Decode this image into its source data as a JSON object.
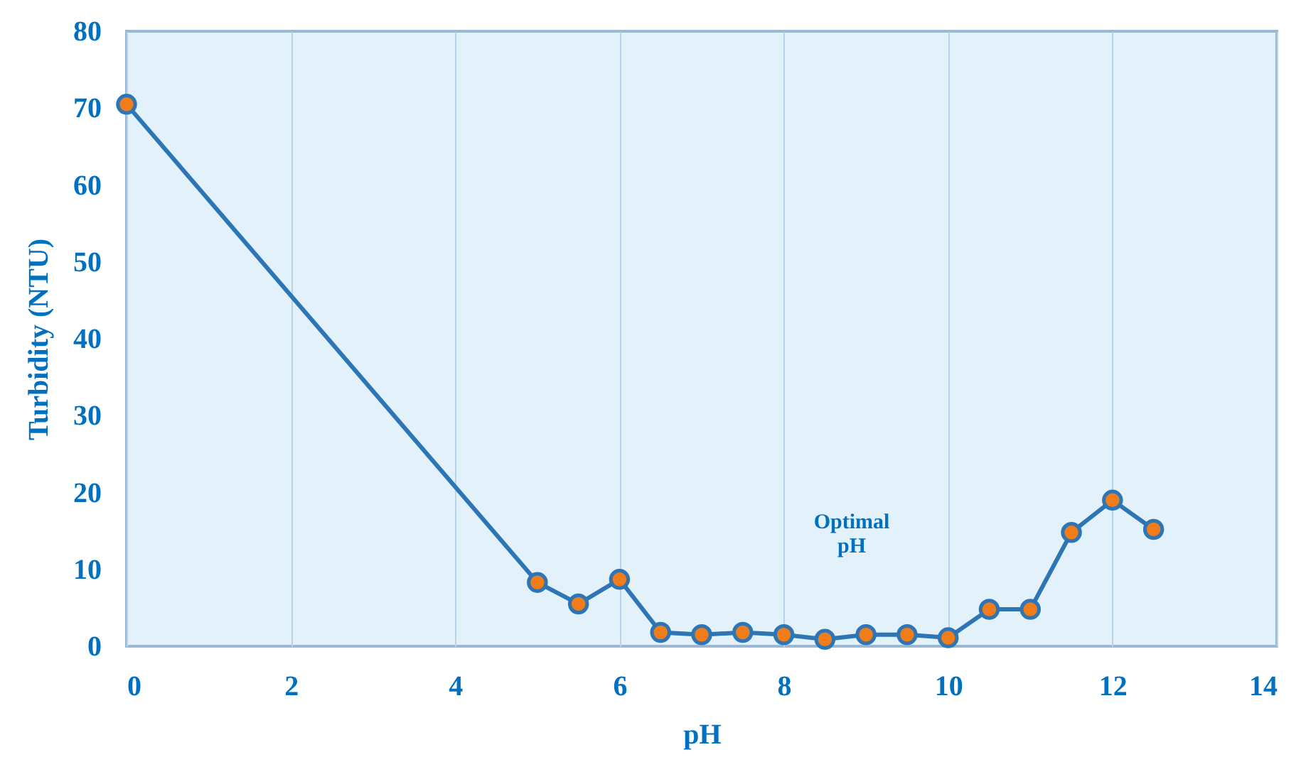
{
  "chart_data": {
    "type": "line",
    "xlabel": "pH",
    "ylabel": "Turbidity (NTU)",
    "x": [
      0,
      5,
      5.5,
      6,
      6.5,
      7,
      7.5,
      8,
      8.5,
      9,
      9.5,
      10,
      10.5,
      11,
      11.5,
      12,
      12.5
    ],
    "series": [
      {
        "color": "#2e75b6",
        "values": [
          70.5,
          8.3,
          5.5,
          8.7,
          1.8,
          1.5,
          1.8,
          1.5,
          0.9,
          1.5,
          1.5,
          1.1,
          4.8,
          4.8,
          14.8,
          19,
          15.2
        ]
      }
    ],
    "xlim": [
      0,
      14
    ],
    "xticks": [
      0,
      2,
      4,
      6,
      8,
      10,
      12,
      14
    ],
    "ylim": [
      0,
      80
    ],
    "yticks": [
      0,
      10,
      20,
      30,
      40,
      50,
      60,
      70,
      80
    ],
    "grid": "x",
    "marker": "circle",
    "line_style": "solid",
    "annotations": [
      "Optimal pH"
    ]
  }
}
